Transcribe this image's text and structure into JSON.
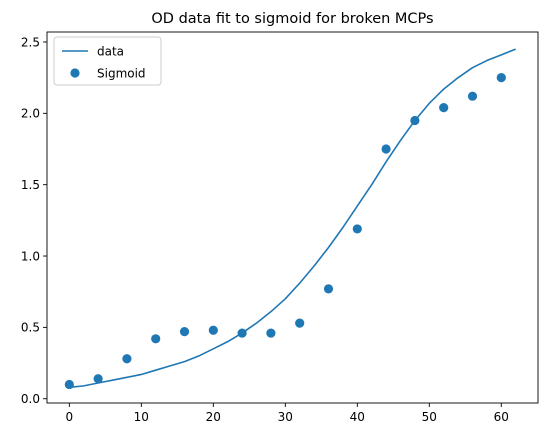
{
  "chart_data": {
    "type": "scatter",
    "title": "OD data fit to sigmoid for broken MCPs",
    "xlabel": "",
    "ylabel": "",
    "xlim": [
      -3.1,
      65.1
    ],
    "ylim": [
      -0.03,
      2.57
    ],
    "xticks": [
      0,
      10,
      20,
      30,
      40,
      50,
      60
    ],
    "yticks": [
      0.0,
      0.5,
      1.0,
      1.5,
      2.0,
      2.5
    ],
    "xtick_labels": [
      "0",
      "10",
      "20",
      "30",
      "40",
      "50",
      "60"
    ],
    "ytick_labels": [
      "0.0",
      "0.5",
      "1.0",
      "1.5",
      "2.0",
      "2.5"
    ],
    "grid": false,
    "legend_position": "top-left",
    "series": [
      {
        "name": "data",
        "kind": "line",
        "color": "#1f77b4",
        "x": [
          0,
          2,
          4,
          6,
          8,
          10,
          12,
          14,
          16,
          18,
          20,
          22,
          24,
          26,
          28,
          30,
          32,
          34,
          36,
          38,
          40,
          42,
          44,
          46,
          48,
          50,
          52,
          54,
          56,
          58,
          60,
          62
        ],
        "y": [
          0.08,
          0.09,
          0.11,
          0.13,
          0.15,
          0.17,
          0.2,
          0.23,
          0.26,
          0.3,
          0.35,
          0.4,
          0.46,
          0.53,
          0.61,
          0.7,
          0.81,
          0.93,
          1.06,
          1.2,
          1.35,
          1.5,
          1.66,
          1.81,
          1.95,
          2.07,
          2.17,
          2.25,
          2.32,
          2.37,
          2.41,
          2.45
        ]
      },
      {
        "name": "Sigmoid",
        "kind": "scatter",
        "color": "#1f77b4",
        "x": [
          0,
          4,
          8,
          12,
          16,
          20,
          24,
          28,
          32,
          36,
          40,
          44,
          48,
          52,
          56,
          60
        ],
        "y": [
          0.1,
          0.14,
          0.28,
          0.42,
          0.47,
          0.48,
          0.46,
          0.46,
          0.53,
          0.77,
          1.19,
          1.75,
          1.95,
          2.04,
          2.12,
          2.25
        ]
      }
    ]
  }
}
